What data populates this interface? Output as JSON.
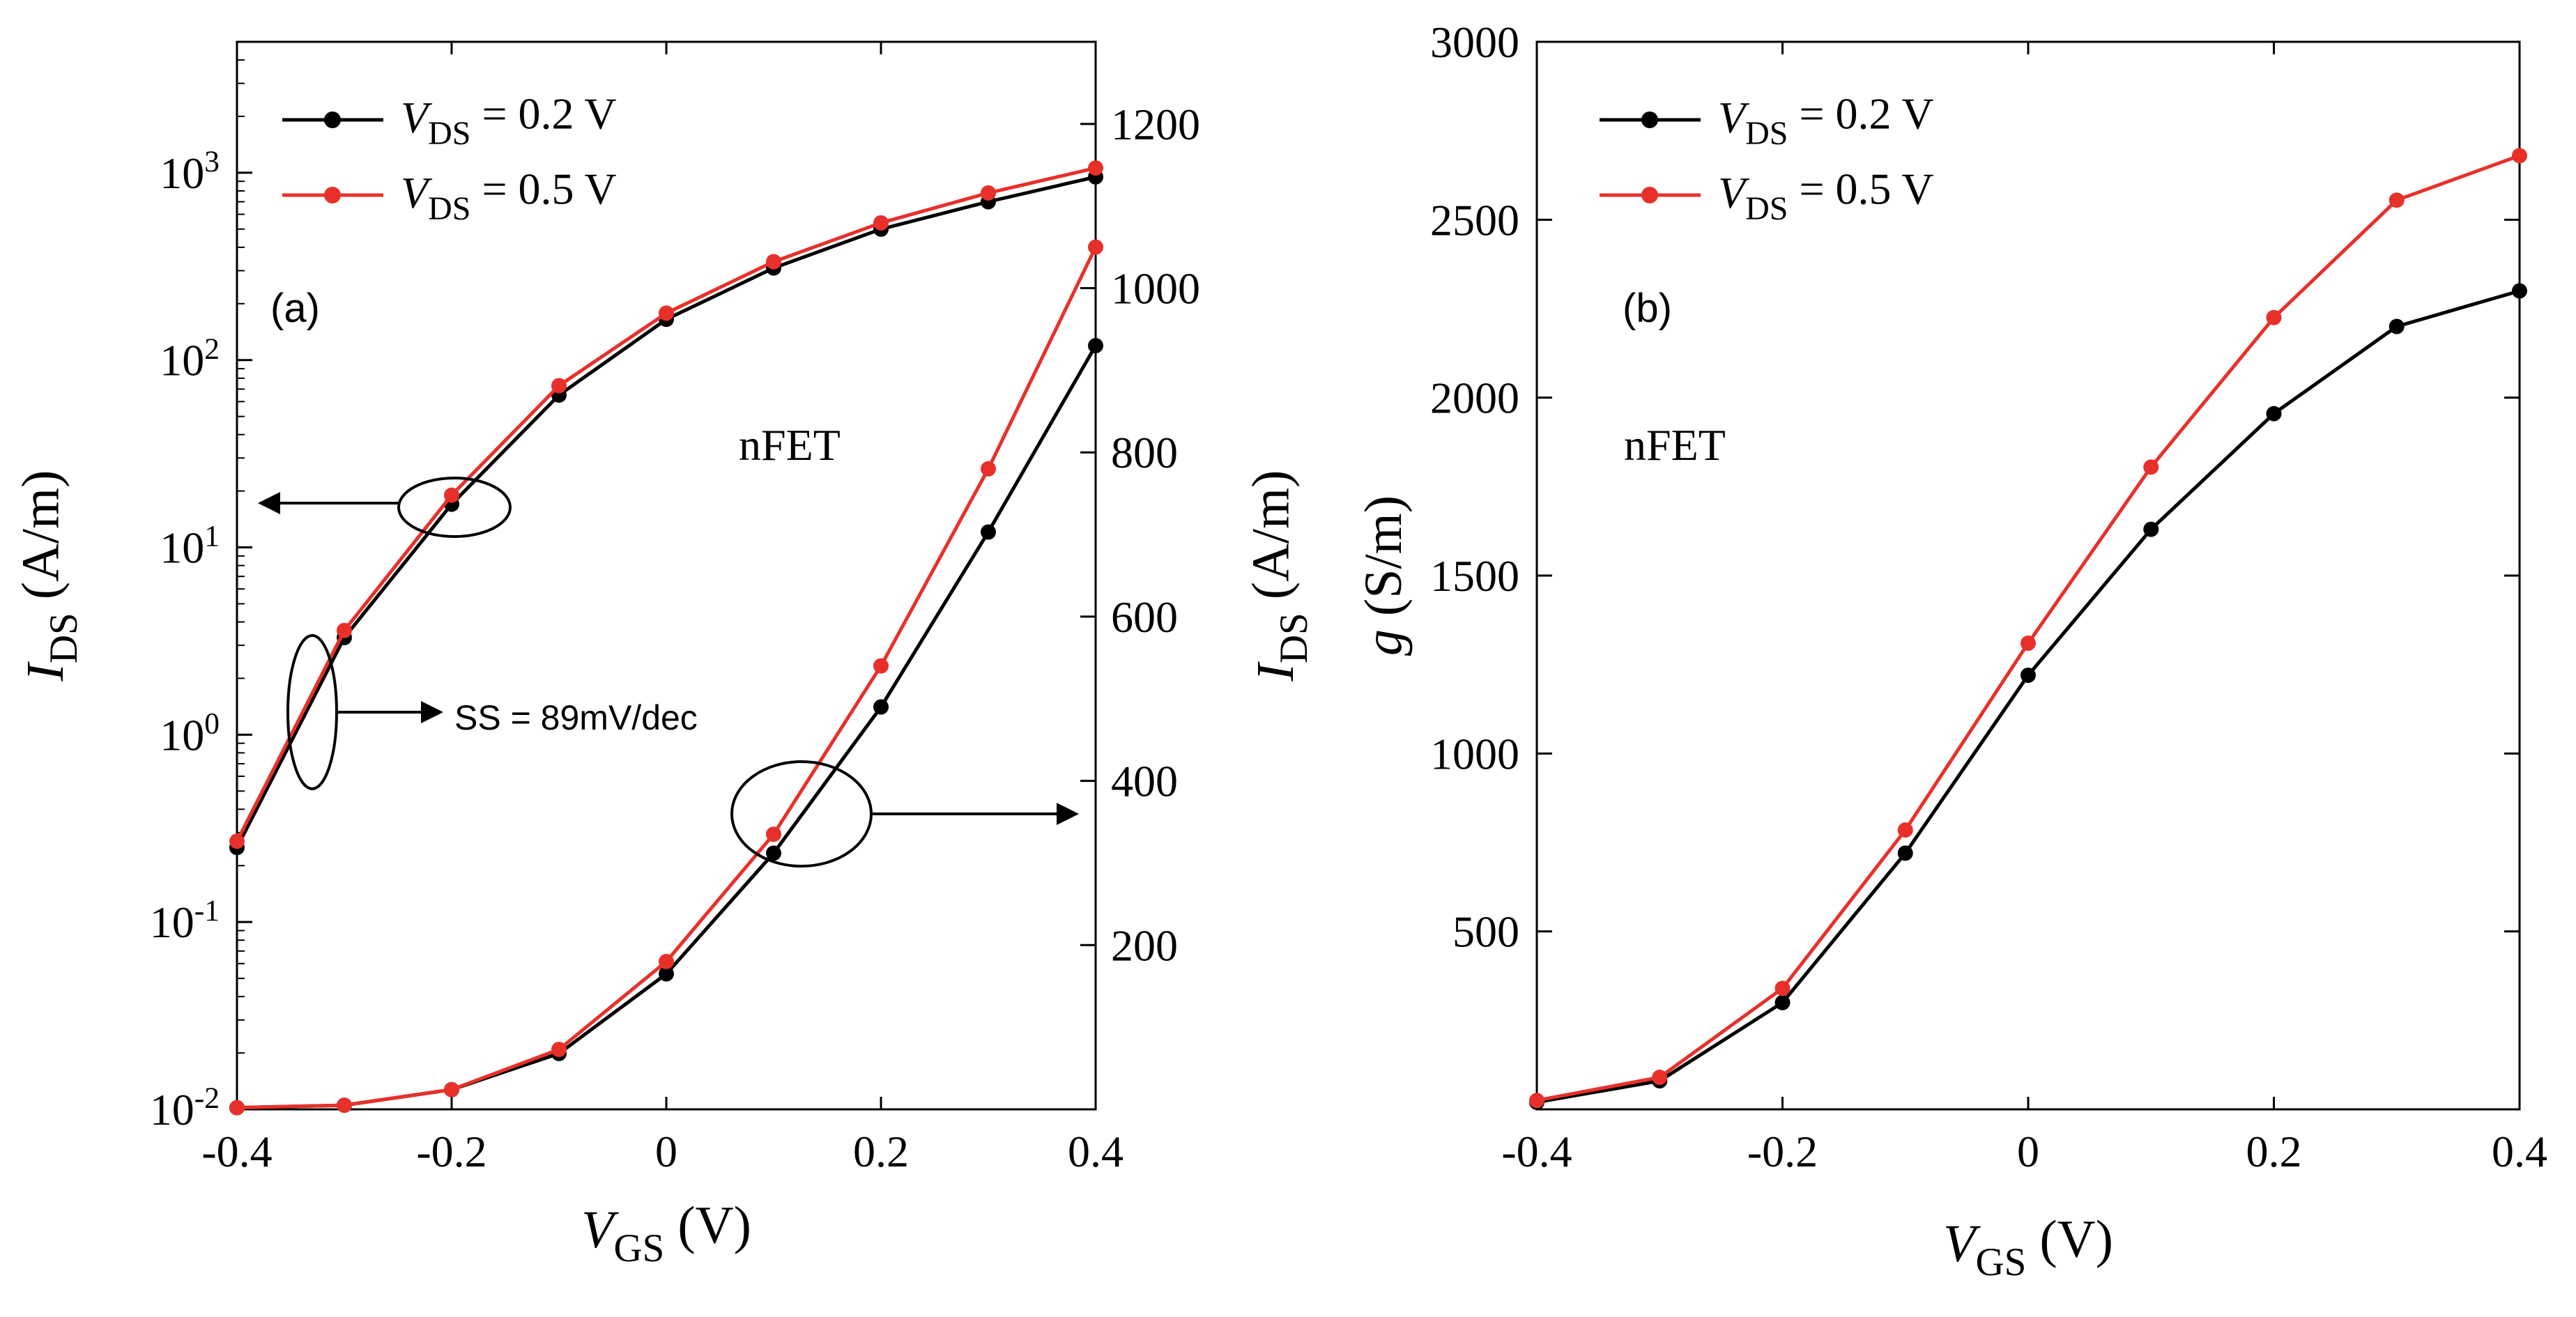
{
  "chart_data": [
    {
      "panel": "(a)",
      "type": "line",
      "annotation_device": "nFET",
      "annotation_ss": "SS = 89mV/dec",
      "xlabel": {
        "main": "V",
        "sub": "GS",
        "rest": " (V)"
      },
      "ylabel_left": {
        "main": "I",
        "sub": "DS",
        "rest": " (A/m)"
      },
      "ylabel_right": {
        "main": "I",
        "sub": "DS",
        "rest": " (A/m)"
      },
      "xlim": [
        -0.4,
        0.4
      ],
      "xticks": [
        "-0.4",
        "-0.2",
        "0",
        "0.2",
        "0.4"
      ],
      "yscale_left": "log",
      "ylim_left": [
        0.01,
        5000
      ],
      "yticks_left": [
        {
          "base": "10",
          "exp": "3"
        },
        {
          "base": "10",
          "exp": "2"
        },
        {
          "base": "10",
          "exp": "1"
        },
        {
          "base": "10",
          "exp": "0"
        },
        {
          "base": "10",
          "exp": "-1"
        },
        {
          "base": "10",
          "exp": "-2"
        }
      ],
      "ylim_right": [
        0,
        1300
      ],
      "yticks_right": [
        "200",
        "400",
        "600",
        "800",
        "1000",
        "1200"
      ],
      "legend_position": "top-left",
      "x": [
        -0.4,
        -0.3,
        -0.2,
        -0.1,
        0.0,
        0.1,
        0.2,
        0.3,
        0.4
      ],
      "series": [
        {
          "name": "V",
          "name_sub": "DS",
          "name_rest": " = 0.2 V",
          "color": "#000000",
          "axis": "left",
          "values": [
            0.25,
            3.3,
            17,
            65,
            165,
            310,
            500,
            700,
            950
          ]
        },
        {
          "name": "V",
          "name_sub": "DS",
          "name_rest": " = 0.5 V",
          "color": "#e8302a",
          "axis": "left",
          "values": [
            0.27,
            3.6,
            19,
            73,
            178,
            335,
            540,
            780,
            1060
          ]
        },
        {
          "name": "V",
          "name_sub": "DS",
          "name_rest": " = 0.2 V",
          "color": "#000000",
          "axis": "right",
          "values": [
            2,
            5,
            24,
            68,
            165,
            312,
            490,
            703,
            930
          ]
        },
        {
          "name": "V",
          "name_sub": "DS",
          "name_rest": " = 0.5 V",
          "color": "#e8302a",
          "axis": "right",
          "values": [
            2,
            5,
            24,
            73,
            180,
            335,
            540,
            780,
            1050
          ]
        }
      ]
    },
    {
      "panel": "(b)",
      "type": "line",
      "annotation_device": "nFET",
      "xlabel": {
        "main": "V",
        "sub": "GS",
        "rest": " (V)"
      },
      "ylabel": {
        "main": "g",
        "rest": " (S/m)"
      },
      "xlim": [
        -0.4,
        0.4
      ],
      "xticks": [
        "-0.4",
        "-0.2",
        "0",
        "0.2",
        "0.4"
      ],
      "ylim": [
        0,
        3000
      ],
      "yticks": [
        "500",
        "1000",
        "1500",
        "2000",
        "2500",
        "3000"
      ],
      "legend_position": "top-left",
      "x": [
        -0.4,
        -0.3,
        -0.2,
        -0.1,
        0.0,
        0.1,
        0.2,
        0.3,
        0.4
      ],
      "series": [
        {
          "name": "V",
          "name_sub": "DS",
          "name_rest": " = 0.2 V",
          "color": "#000000",
          "values": [
            20,
            80,
            300,
            720,
            1220,
            1630,
            1955,
            2200,
            2300
          ]
        },
        {
          "name": "V",
          "name_sub": "DS",
          "name_rest": " = 0.5 V",
          "color": "#e8302a",
          "values": [
            25,
            90,
            340,
            785,
            1310,
            1805,
            2225,
            2555,
            2680
          ]
        }
      ]
    }
  ]
}
